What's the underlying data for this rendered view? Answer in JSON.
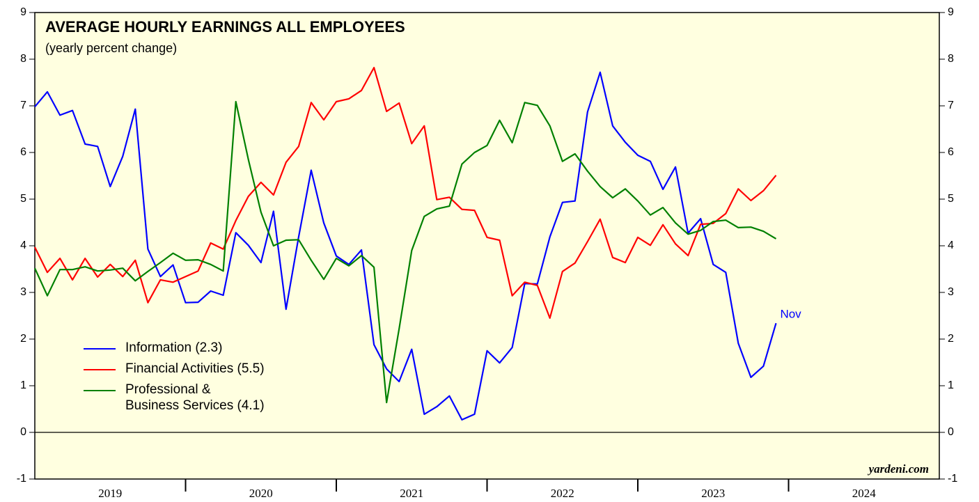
{
  "chart_data": {
    "type": "line",
    "title": "AVERAGE HOURLY EARNINGS ALL EMPLOYEES",
    "subtitle": "(yearly percent change)",
    "source": "yardeni.com",
    "end_label": "Nov",
    "x_band_labels": [
      "2019",
      "2020",
      "2021",
      "2022",
      "2023",
      "2024"
    ],
    "categories": [
      null,
      null,
      null,
      null,
      null,
      null,
      null,
      null,
      null,
      null,
      null,
      null,
      null,
      null,
      null,
      null,
      null,
      null,
      null,
      null,
      null,
      null,
      null,
      null,
      null,
      null,
      null,
      null,
      null,
      null,
      null,
      null,
      null,
      null,
      null,
      null,
      null,
      null,
      null,
      null,
      null,
      null,
      null,
      null,
      null,
      null,
      null,
      null,
      null,
      null,
      null,
      null,
      null,
      null,
      null,
      null,
      null,
      null,
      null,
      null
    ],
    "series": [
      {
        "name": "Information (2.3)",
        "color": "#0000ff",
        "values": [
          6.98,
          7.3,
          6.8,
          6.9,
          6.18,
          6.13,
          5.27,
          5.92,
          6.93,
          3.93,
          3.34,
          3.59,
          2.78,
          2.79,
          3.03,
          2.94,
          4.28,
          4.01,
          3.64,
          4.74,
          2.64,
          4.19,
          5.62,
          4.49,
          3.78,
          3.6,
          3.91,
          1.88,
          1.36,
          1.09,
          1.78,
          0.39,
          0.55,
          0.78,
          0.27,
          0.39,
          1.75,
          1.49,
          1.82,
          3.19,
          3.18,
          4.19,
          4.93,
          4.96,
          6.87,
          7.72,
          6.57,
          6.22,
          5.94,
          5.81,
          5.21,
          5.69,
          4.27,
          4.58,
          3.6,
          3.43,
          1.91,
          1.18,
          1.42,
          2.34
        ]
      },
      {
        "name": "Financial Activities (5.5)",
        "color": "#ff0000",
        "values": [
          3.97,
          3.43,
          3.73,
          3.27,
          3.73,
          3.33,
          3.6,
          3.34,
          3.69,
          2.78,
          3.27,
          3.22,
          3.34,
          3.46,
          4.06,
          3.93,
          4.54,
          5.06,
          5.36,
          5.09,
          5.79,
          6.13,
          7.07,
          6.7,
          7.09,
          7.15,
          7.33,
          7.82,
          6.88,
          7.06,
          6.19,
          6.57,
          4.99,
          5.04,
          4.78,
          4.76,
          4.18,
          4.12,
          2.93,
          3.22,
          3.15,
          2.45,
          3.45,
          3.63,
          4.09,
          4.57,
          3.75,
          3.64,
          4.18,
          4.01,
          4.45,
          4.04,
          3.79,
          4.46,
          4.48,
          4.69,
          5.22,
          4.97,
          5.18,
          5.51
        ]
      },
      {
        "name": "Professional &\nBusiness Services (4.1)",
        "color": "#008000",
        "values": [
          3.52,
          2.93,
          3.49,
          3.49,
          3.55,
          3.46,
          3.48,
          3.52,
          3.25,
          3.45,
          3.64,
          3.84,
          3.69,
          3.7,
          3.6,
          3.46,
          7.09,
          5.85,
          4.72,
          4.0,
          4.12,
          4.13,
          3.69,
          3.28,
          3.73,
          3.57,
          3.79,
          3.54,
          0.64,
          2.22,
          3.9,
          4.63,
          4.79,
          4.85,
          5.75,
          6.0,
          6.15,
          6.69,
          6.21,
          7.07,
          7.01,
          6.57,
          5.81,
          5.97,
          5.6,
          5.27,
          5.03,
          5.22,
          4.96,
          4.66,
          4.82,
          4.49,
          4.25,
          4.33,
          4.52,
          4.55,
          4.39,
          4.4,
          4.31,
          4.15
        ]
      }
    ],
    "ylim": [
      -1,
      9
    ],
    "yticks": [
      -1,
      0,
      1,
      2,
      3,
      4,
      5,
      6,
      7,
      8,
      9
    ]
  }
}
